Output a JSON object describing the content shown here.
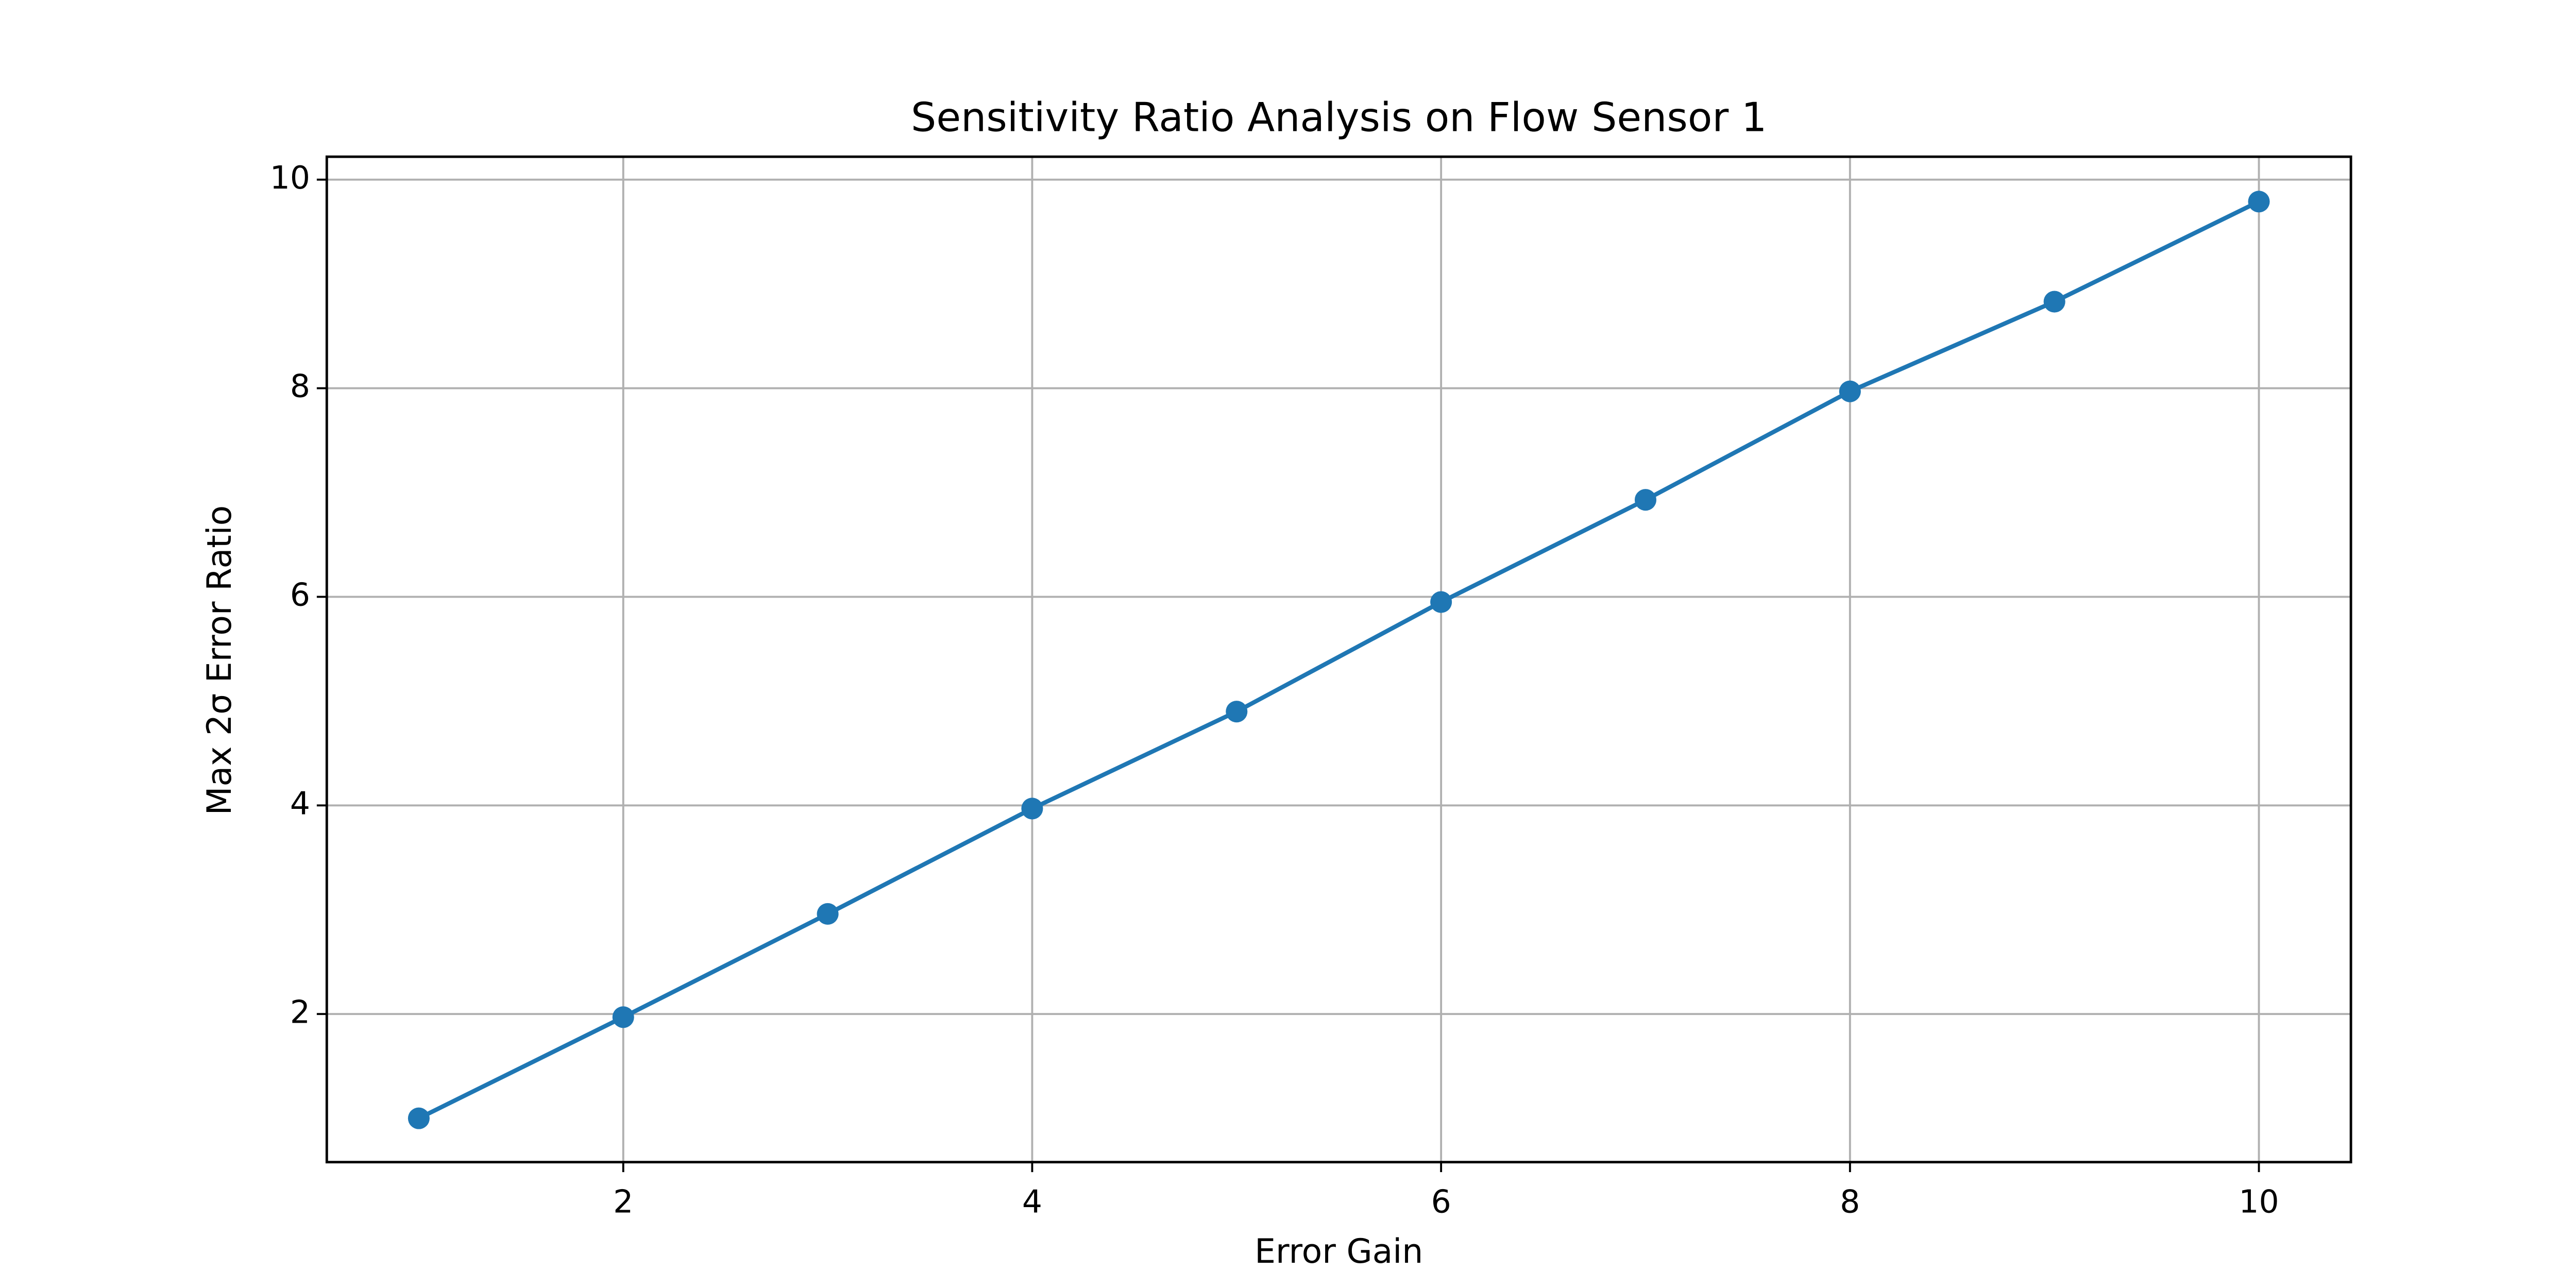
{
  "chart_data": {
    "type": "line",
    "title": "Sensitivity Ratio Analysis on Flow Sensor 1",
    "x_label": "Error Gain",
    "y_label": "Max 2σ Error Ratio",
    "x": [
      1,
      2,
      3,
      4,
      5,
      6,
      7,
      8,
      9,
      10
    ],
    "series": [
      {
        "name": "Max 2σ Error Ratio",
        "color": "#1f77b4",
        "values": [
          1.0,
          1.97,
          2.96,
          3.97,
          4.9,
          5.95,
          6.93,
          7.97,
          8.83,
          9.79
        ]
      }
    ],
    "xlim": [
      0.55,
      10.45
    ],
    "ylim": [
      0.58,
      10.22
    ],
    "xticks": [
      2,
      4,
      6,
      8,
      10
    ],
    "yticks": [
      2,
      4,
      6,
      8,
      10
    ],
    "grid": true,
    "markers": true
  }
}
